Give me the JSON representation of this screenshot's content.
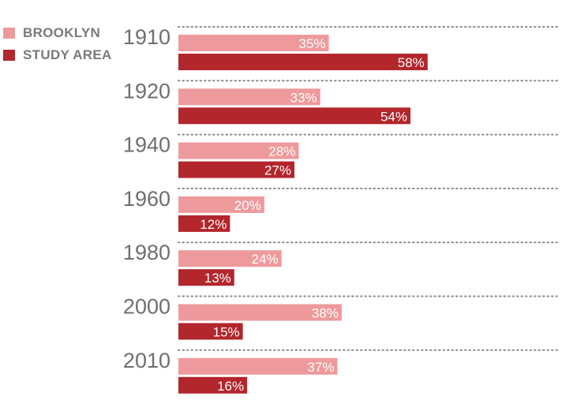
{
  "legend": {
    "brooklyn_label": "BROOKLYN",
    "study_label": "STUDY AREA"
  },
  "colors": {
    "brooklyn": "#ee9a9c",
    "study_area": "#b2262c",
    "year_text": "#6f6f6f",
    "value_text": "#ffffff",
    "divider": "#8a8a8a"
  },
  "chart_data": {
    "type": "bar",
    "orientation": "horizontal",
    "title": "",
    "xlabel": "",
    "ylabel": "",
    "categories": [
      "1910",
      "1920",
      "1940",
      "1960",
      "1980",
      "2000",
      "2010"
    ],
    "series": [
      {
        "name": "BROOKLYN",
        "values": [
          35,
          33,
          28,
          20,
          24,
          38,
          37
        ],
        "labels": [
          "35%",
          "33%",
          "28%",
          "20%",
          "24%",
          "38%",
          "37%"
        ]
      },
      {
        "name": "STUDY AREA",
        "values": [
          58,
          54,
          27,
          12,
          13,
          15,
          16
        ],
        "labels": [
          "58%",
          "54%",
          "27%",
          "12%",
          "13%",
          "15%",
          "16%"
        ]
      }
    ],
    "xlim": [
      0,
      90
    ],
    "grid": false,
    "legend_position": "top-left"
  }
}
